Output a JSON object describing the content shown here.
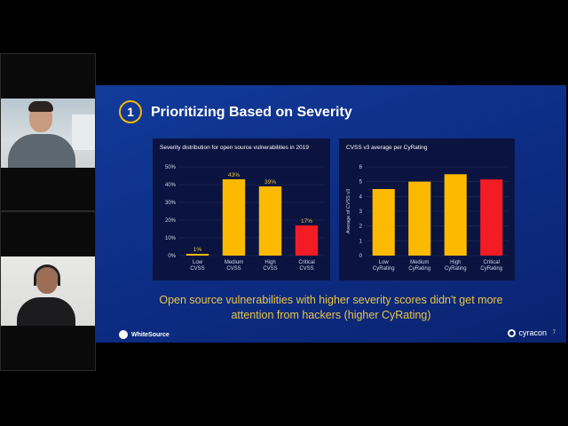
{
  "slide": {
    "number": "1",
    "title": "Prioritizing Based on Severity",
    "caption_line1": "Open source vulnerabilities with higher severity scores didn't get more",
    "caption_line2": "attention from hackers (higher CyRating)",
    "brand_left": "WhiteSource",
    "brand_right": "cyracon",
    "page": "7"
  },
  "colors": {
    "bar_yellow": "#fbb900",
    "bar_red": "#f21c24",
    "slide_bg": "#0d2e86",
    "panel_bg": "#0b1440",
    "caption": "#e9c646"
  },
  "chart_data": [
    {
      "type": "bar",
      "title": "Severity distribution for open source vulnerabilities in 2019",
      "categories": [
        "Low CVSS",
        "Medium CVSS",
        "High CVSS",
        "Critical CVSS"
      ],
      "values": [
        1,
        43,
        39,
        17
      ],
      "data_labels": [
        "1%",
        "43%",
        "39%",
        "17%"
      ],
      "yticks": [
        "0%",
        "10%",
        "20%",
        "30%",
        "40%",
        "50%"
      ],
      "ylim": [
        0,
        50
      ],
      "ylabel": "",
      "bar_colors": [
        "#fbb900",
        "#fbb900",
        "#fbb900",
        "#f21c24"
      ]
    },
    {
      "type": "bar",
      "title": "CVSS v3 average per CyRating",
      "categories": [
        "Low CyRating",
        "Medium CyRating",
        "High CyRating",
        "Critical CyRating"
      ],
      "values": [
        4.5,
        5.0,
        5.5,
        5.15
      ],
      "yticks": [
        "0",
        "1",
        "2",
        "3",
        "4",
        "5",
        "6"
      ],
      "ylim": [
        0,
        6
      ],
      "ylabel": "Average of CVSS v3",
      "bar_colors": [
        "#fbb900",
        "#fbb900",
        "#fbb900",
        "#f21c24"
      ]
    }
  ]
}
